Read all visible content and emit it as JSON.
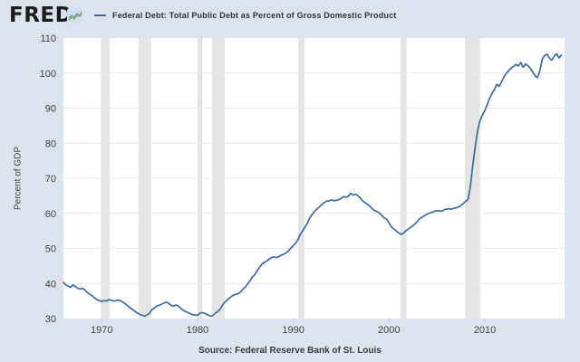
{
  "header": {
    "logo_text": "FRED",
    "logo_registered": "®",
    "legend": {
      "series_label": "Federal Debt: Total Public Debt as Percent of Gross Domestic Product"
    }
  },
  "footer": {
    "source_text": "Source: Federal Reserve Bank of St. Louis"
  },
  "colors": {
    "background": "#dce3ed",
    "plot_background": "#ffffff",
    "recession_band": "#e4e4e4",
    "gridline": "#e9e9e9",
    "tick_mark": "#c0c6ce",
    "text": "#424242",
    "line": "#3d6ca5",
    "logo": "#1c1c1c",
    "icon_bg": "#cfdff0",
    "icon_line_green": "#6fae3e",
    "icon_line_blue": "#7c97b5"
  },
  "chart_data": {
    "type": "line",
    "title": "Federal Debt: Total Public Debt as Percent of Gross Domestic Product",
    "xlabel": "",
    "ylabel": "Percent of GDP",
    "xlim": [
      1966.0,
      2018.33
    ],
    "ylim": [
      30,
      110
    ],
    "yticks": [
      30,
      40,
      50,
      60,
      70,
      80,
      90,
      100,
      110
    ],
    "xticks": [
      1970,
      1980,
      1990,
      2000,
      2010
    ],
    "grid": "horizontal",
    "legend_position": "top",
    "frequency": "quarterly",
    "x_start": 1966.0,
    "x_step": 0.25,
    "recession_bands": [
      [
        1969.92,
        1970.83
      ],
      [
        1973.83,
        1975.17
      ],
      [
        1980.0,
        1980.5
      ],
      [
        1981.5,
        1982.83
      ],
      [
        1990.5,
        1991.17
      ],
      [
        2001.17,
        2001.83
      ],
      [
        2007.92,
        2009.5
      ]
    ],
    "series": [
      {
        "name": "Federal Debt: Total Public Debt as Percent of Gross Domestic Product",
        "color": "#3d6ca5",
        "values": [
          40.3,
          39.6,
          39.2,
          38.9,
          39.6,
          39.1,
          38.7,
          38.4,
          38.6,
          38.1,
          37.4,
          36.9,
          36.5,
          35.9,
          35.4,
          35.1,
          34.9,
          35.1,
          35.0,
          35.4,
          35.2,
          35.0,
          35.1,
          35.3,
          35.0,
          34.6,
          34.1,
          33.5,
          33.0,
          32.5,
          32.0,
          31.5,
          31.2,
          30.9,
          30.7,
          31.1,
          31.5,
          32.6,
          33.0,
          33.6,
          33.8,
          34.1,
          34.4,
          34.7,
          34.3,
          33.8,
          33.5,
          33.9,
          33.6,
          32.9,
          32.4,
          32.0,
          31.7,
          31.4,
          31.1,
          31.0,
          30.9,
          31.5,
          31.7,
          31.5,
          31.2,
          30.8,
          30.7,
          31.3,
          31.8,
          32.3,
          33.3,
          34.4,
          35.0,
          35.7,
          36.2,
          36.7,
          36.9,
          37.1,
          37.6,
          38.4,
          39.0,
          39.9,
          40.9,
          41.9,
          42.6,
          43.7,
          44.7,
          45.6,
          46.1,
          46.4,
          47.0,
          47.4,
          47.6,
          47.4,
          47.7,
          48.1,
          48.4,
          48.7,
          49.3,
          50.1,
          50.8,
          51.5,
          52.6,
          54.1,
          55.1,
          56.2,
          57.4,
          58.8,
          59.8,
          60.6,
          61.3,
          61.9,
          62.6,
          63.1,
          63.5,
          63.6,
          63.8,
          63.6,
          63.7,
          63.9,
          64.3,
          64.8,
          64.6,
          64.9,
          65.7,
          65.2,
          65.5,
          65.0,
          64.4,
          63.5,
          63.0,
          62.6,
          62.0,
          61.3,
          60.8,
          60.5,
          60.1,
          59.4,
          58.7,
          58.3,
          57.2,
          56.2,
          55.5,
          55.0,
          54.4,
          54.0,
          54.3,
          55.0,
          55.5,
          56.0,
          56.5,
          57.1,
          57.8,
          58.6,
          59.0,
          59.4,
          59.8,
          60.1,
          60.3,
          60.6,
          60.8,
          60.7,
          60.6,
          61.0,
          61.2,
          61.3,
          61.2,
          61.4,
          61.6,
          61.8,
          62.2,
          62.8,
          63.4,
          64.0,
          67.8,
          73.9,
          79.0,
          83.5,
          86.5,
          88.0,
          89.3,
          91.0,
          92.8,
          94.2,
          95.3,
          96.8,
          96.2,
          97.5,
          98.9,
          99.9,
          100.7,
          101.4,
          101.9,
          102.5,
          102.0,
          103.0,
          101.7,
          102.6,
          102.1,
          101.4,
          100.3,
          99.2,
          98.7,
          100.6,
          104.0,
          105.0,
          105.4,
          104.2,
          103.7,
          104.8,
          105.5,
          104.3,
          105.1
        ]
      }
    ]
  }
}
